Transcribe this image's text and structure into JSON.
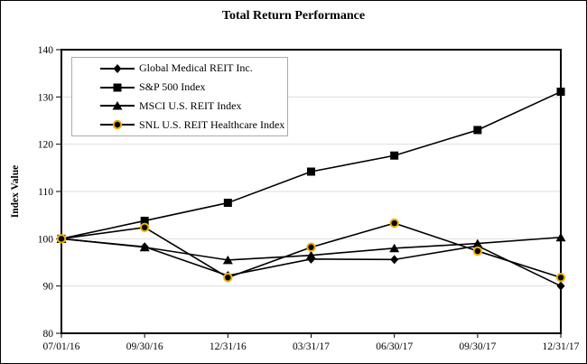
{
  "chart_data": {
    "type": "line",
    "title": "Total Return Performance",
    "xlabel": "",
    "ylabel": "Index Value",
    "ylim": [
      80,
      140
    ],
    "yticks": [
      80,
      90,
      100,
      110,
      120,
      130,
      140
    ],
    "grid": "horizontal-light-gray",
    "legend_position": "inside-top-left",
    "categories": [
      "07/01/16",
      "09/30/16",
      "12/31/16",
      "03/31/17",
      "06/30/17",
      "09/30/17",
      "12/31/17"
    ],
    "series": [
      {
        "name": "Global Medical REIT Inc.",
        "marker": "diamond",
        "color": "#000000",
        "values": [
          100,
          98.3,
          92.2,
          95.7,
          95.6,
          98.5,
          90.0
        ]
      },
      {
        "name": "S&P 500 Index",
        "marker": "square",
        "color": "#000000",
        "values": [
          100,
          103.8,
          107.6,
          114.2,
          117.6,
          123.0,
          131.1
        ]
      },
      {
        "name": "MSCI U.S. REIT Index",
        "marker": "triangle",
        "color": "#000000",
        "values": [
          100,
          98.2,
          95.5,
          96.5,
          98.0,
          99.0,
          100.3
        ]
      },
      {
        "name": "SNL U.S. REIT Healthcare Index",
        "marker": "circle",
        "color": "#000000",
        "marker_ring": "#f0b000",
        "values": [
          100,
          102.4,
          91.8,
          98.2,
          103.3,
          97.4,
          91.8
        ]
      }
    ],
    "colors": {
      "line": "#000000",
      "grid": "#dedede",
      "axis_border": "#000000",
      "legend_border": "#ababab",
      "circle_marker_ring": "#f0b000",
      "background": "#ffffff"
    }
  }
}
